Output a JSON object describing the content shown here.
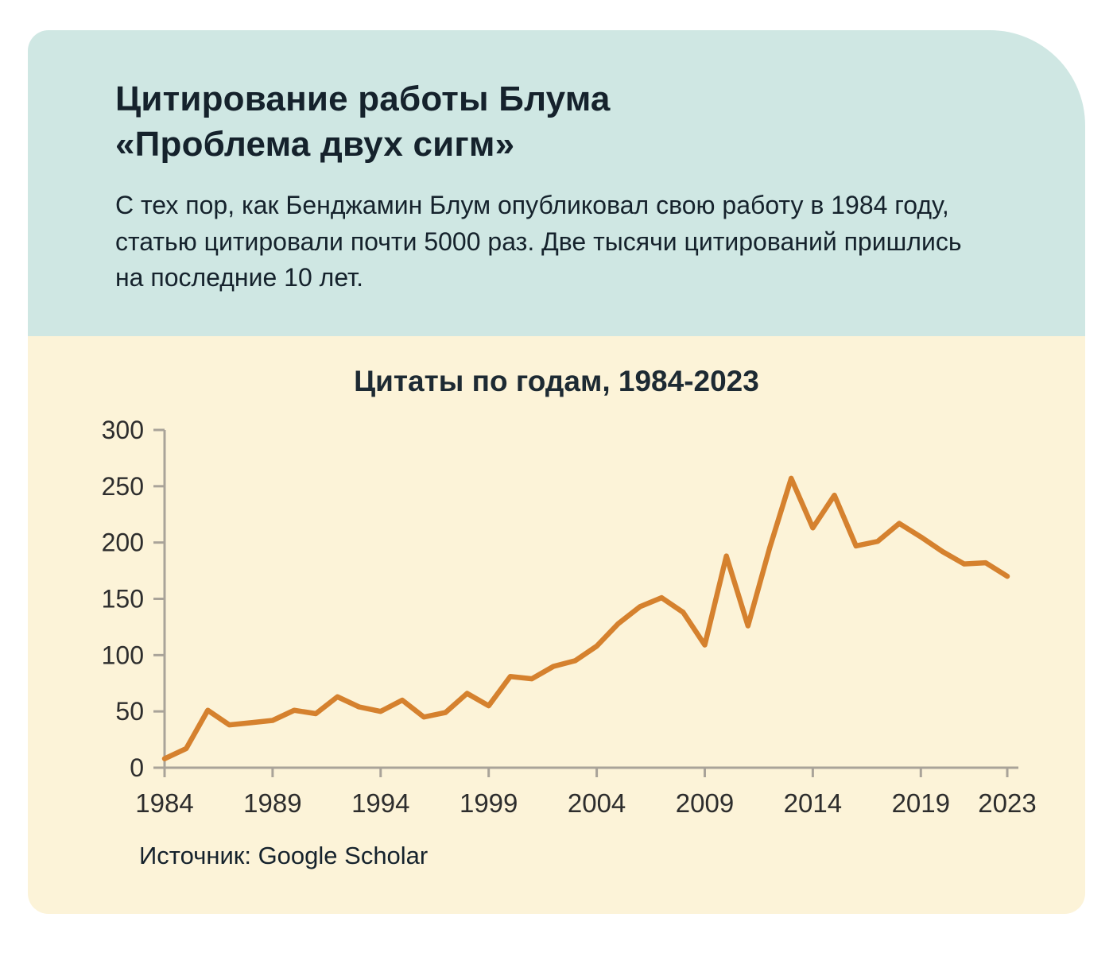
{
  "header": {
    "title": "Цитирование работы Блума\n«Проблема двух сигм»",
    "subtitle": "С тех пор, как Бенджамин Блум опубликовал свою работу в 1984 году, статью цитировали почти 5000 раз. Две тысячи цитирований пришлись на последние 10 лет."
  },
  "chart": {
    "title": "Цитаты по годам, 1984-2023",
    "source": "Источник: Google Scholar"
  },
  "colors": {
    "header_background": "#cfe7e3",
    "chart_background": "#fcf3d8",
    "line": "#d5812e",
    "axis": "#a9a399",
    "text": "#15222c"
  },
  "chart_data": {
    "type": "line",
    "title": "Цитаты по годам, 1984-2023",
    "xlabel": "",
    "ylabel": "",
    "x": [
      1984,
      1985,
      1986,
      1987,
      1988,
      1989,
      1990,
      1991,
      1992,
      1993,
      1994,
      1995,
      1996,
      1997,
      1998,
      1999,
      2000,
      2001,
      2002,
      2003,
      2004,
      2005,
      2006,
      2007,
      2008,
      2009,
      2010,
      2011,
      2012,
      2013,
      2014,
      2015,
      2016,
      2017,
      2018,
      2019,
      2020,
      2021,
      2022,
      2023
    ],
    "values": [
      8,
      17,
      51,
      38,
      40,
      42,
      51,
      48,
      63,
      54,
      50,
      60,
      45,
      49,
      66,
      55,
      81,
      79,
      90,
      95,
      108,
      128,
      143,
      151,
      138,
      109,
      188,
      126,
      195,
      257,
      213,
      242,
      197,
      201,
      217,
      205,
      192,
      181,
      182,
      170
    ],
    "xticks": [
      1984,
      1989,
      1994,
      1999,
      2004,
      2009,
      2014,
      2019,
      2023
    ],
    "yticks": [
      0,
      50,
      100,
      150,
      200,
      250,
      300
    ],
    "ylim": [
      0,
      300
    ],
    "grid": false,
    "legend": "none",
    "line_color": "#d5812e",
    "axis_color": "#a9a399",
    "tick_text_color": "#2d2d2d",
    "source": "Источник: Google Scholar"
  }
}
